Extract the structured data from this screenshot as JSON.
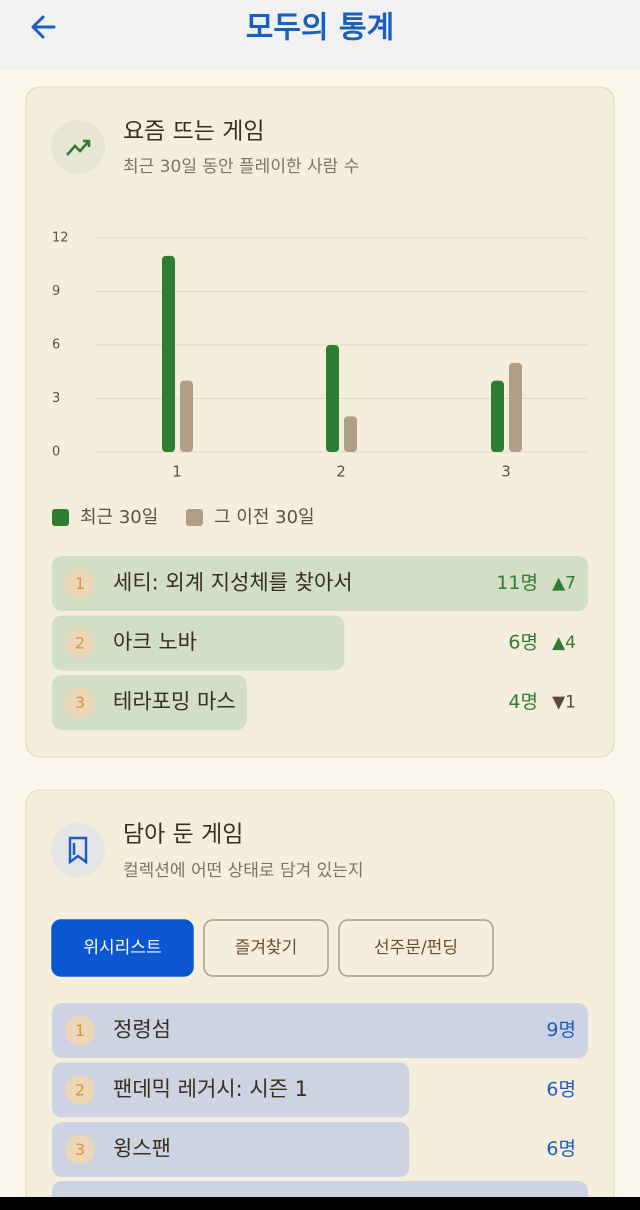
{
  "header": {
    "title": "모두의 통계"
  },
  "trending": {
    "title": "요즘 뜨는 게임",
    "subtitle": "최근 30일 동안 플레이한 사람 수",
    "items": [
      {
        "rank": "1",
        "name": "세티: 외계 지성체를 찾아서",
        "count": 11,
        "count_label": "11명",
        "change": "▲7"
      },
      {
        "rank": "2",
        "name": "아크 노바",
        "count": 6,
        "count_label": "6명",
        "change": "▲4"
      },
      {
        "rank": "3",
        "name": "테라포밍 마스",
        "count": 4,
        "count_label": "4명",
        "change": "▼1"
      }
    ]
  },
  "chart_data": {
    "type": "bar",
    "categories": [
      "1",
      "2",
      "3"
    ],
    "series": [
      {
        "name": "최근 30일",
        "color": "#2e7d32",
        "values": [
          11,
          6,
          4
        ]
      },
      {
        "name": "그 이전 30일",
        "color": "#b09f86",
        "values": [
          4,
          2,
          5
        ]
      }
    ],
    "ylim": [
      0,
      12
    ],
    "yticks": [
      0,
      3,
      6,
      9,
      12
    ],
    "grid": true
  },
  "saved": {
    "title": "담아 둔 게임",
    "subtitle": "컬렉션에 어떤 상태로 담겨 있는지",
    "tabs": [
      "위시리스트",
      "즐겨찾기",
      "선주문/펀딩"
    ],
    "items": [
      {
        "rank": "1",
        "name": "정령섬",
        "count": 9,
        "count_label": "9명"
      },
      {
        "rank": "2",
        "name": "팬데믹 레거시: 시즌 1",
        "count": 6,
        "count_label": "6명"
      },
      {
        "rank": "3",
        "name": "윙스팬",
        "count": 6,
        "count_label": "6명"
      }
    ]
  }
}
